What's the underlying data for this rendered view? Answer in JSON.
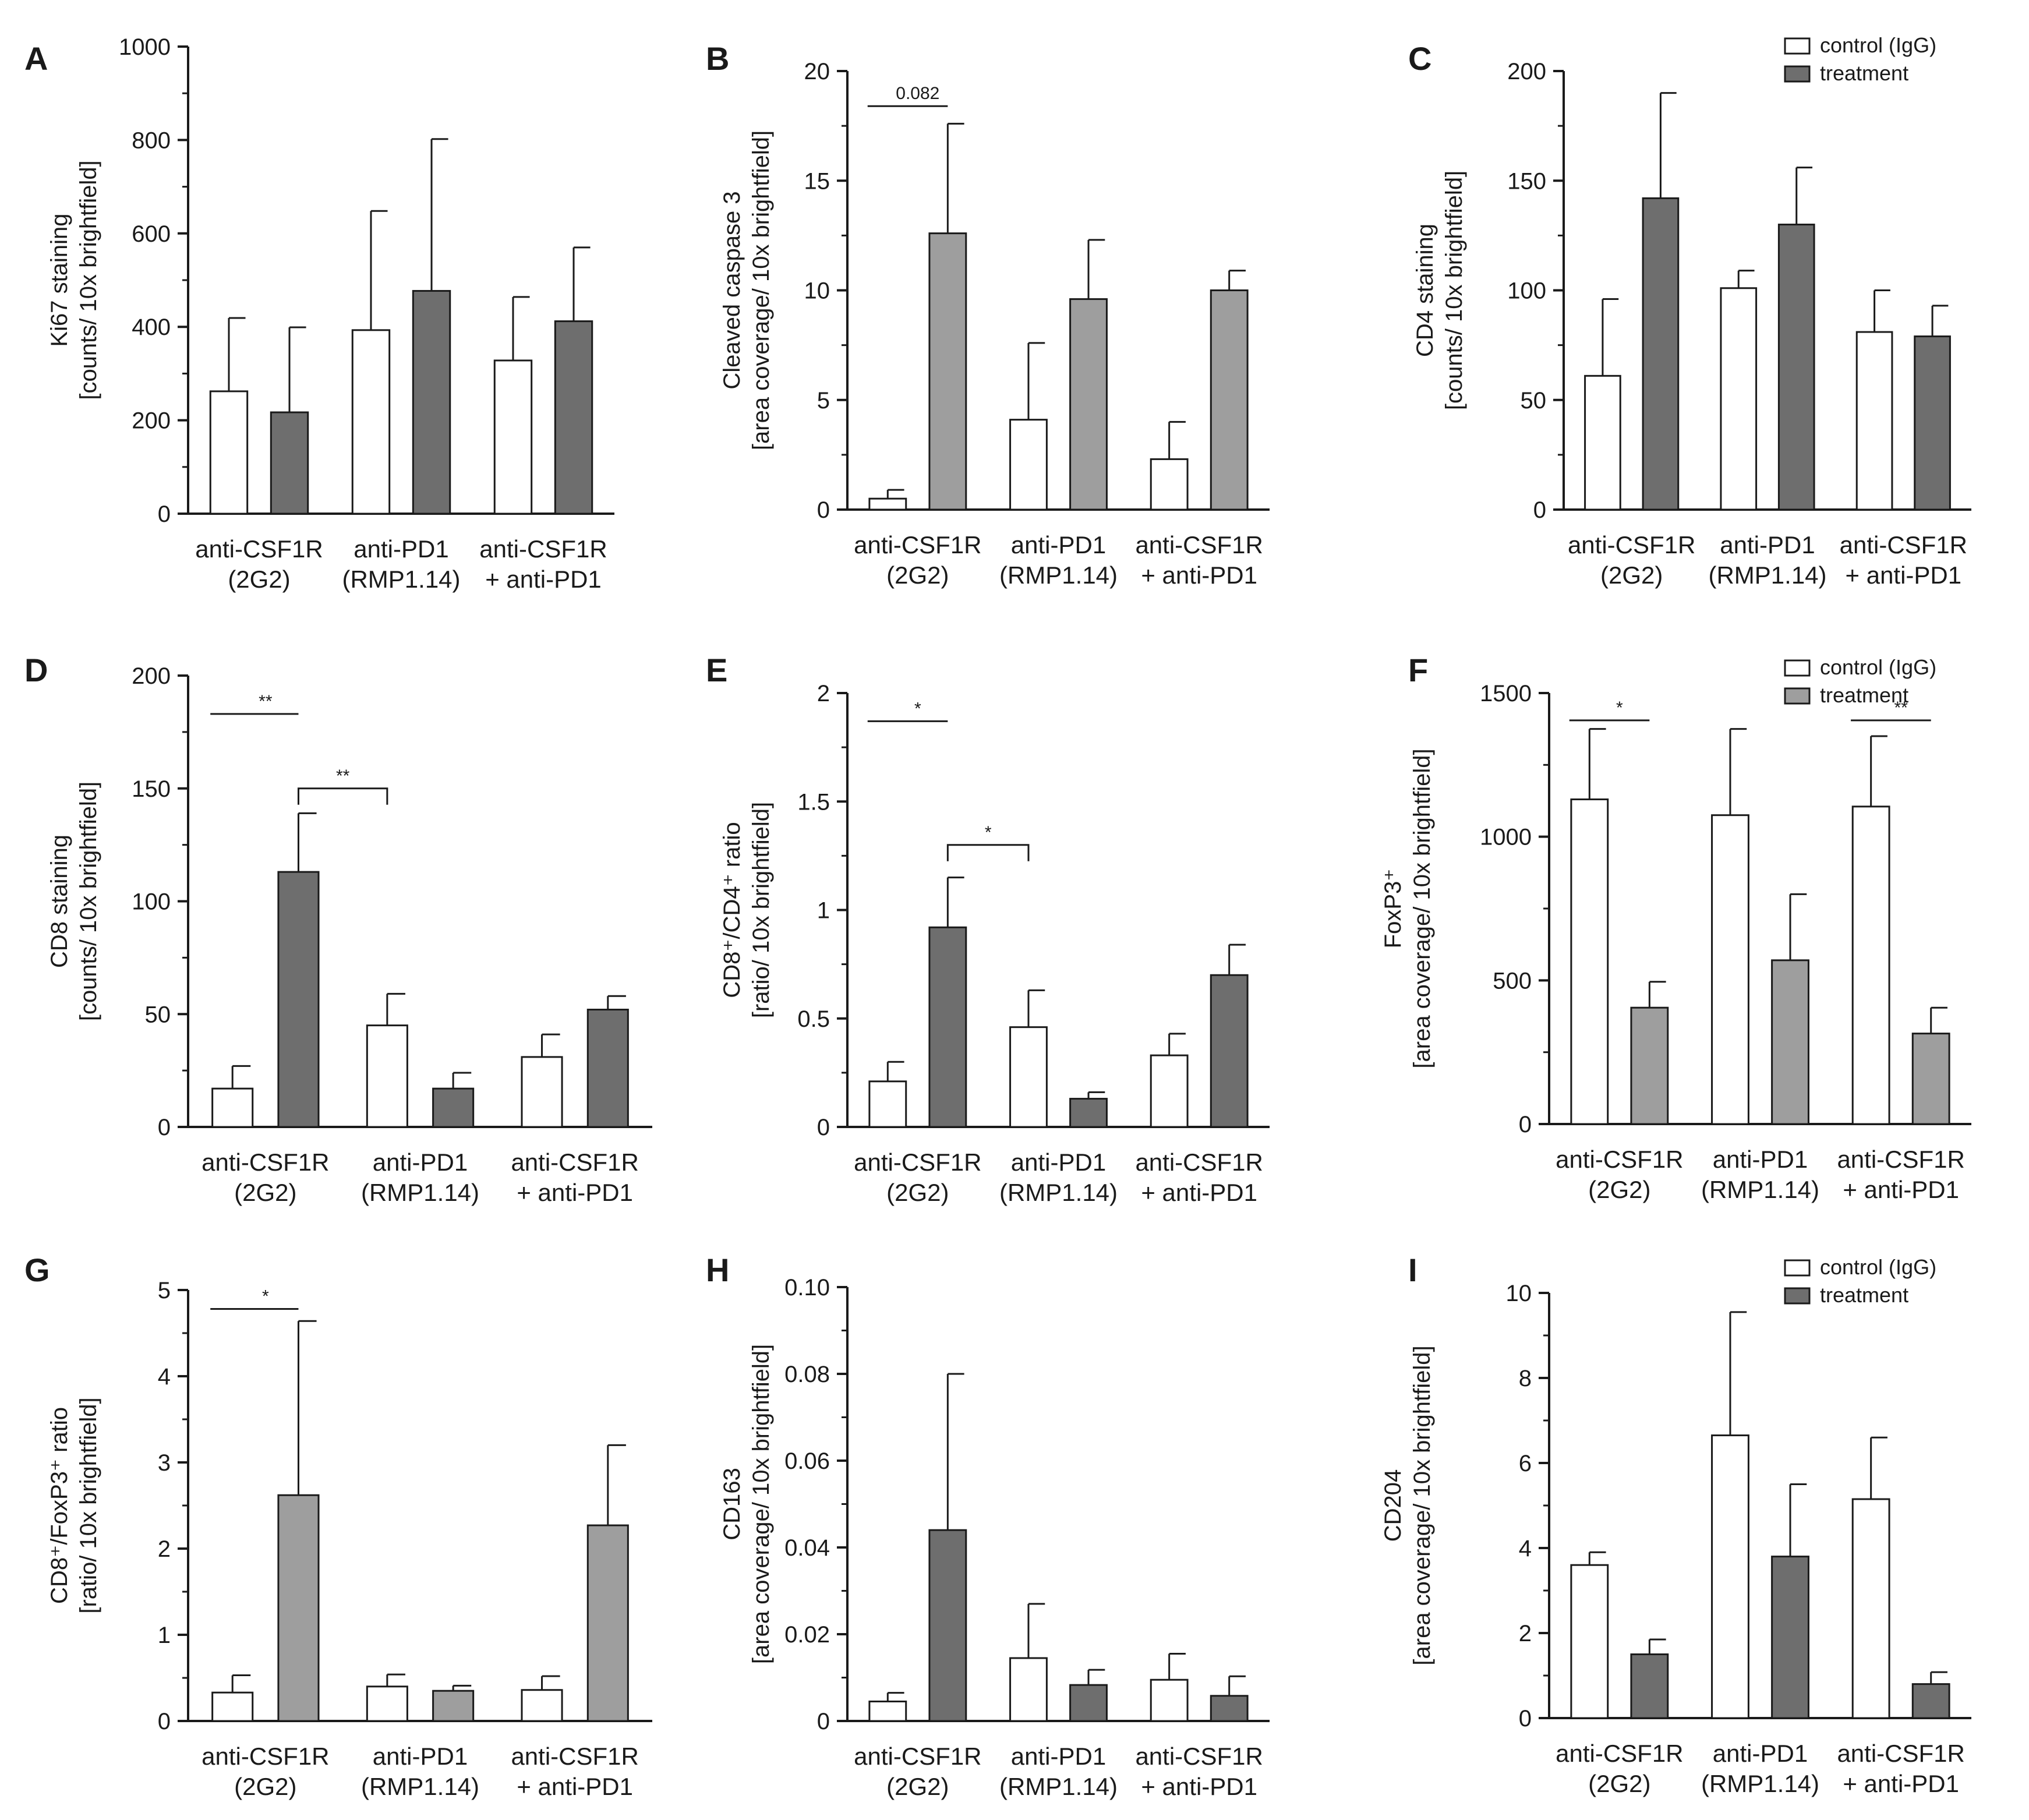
{
  "colors": {
    "control": "#ffffff",
    "treatment_dark": "#6e6e6e",
    "treatment_light": "#9e9e9e",
    "axis": "#1a1a1a"
  },
  "legend": [
    "control (IgG)",
    "treatment"
  ],
  "chart_data": [
    {
      "panel": "A",
      "type": "bar",
      "title": "",
      "ylabel": [
        "Ki67 staining",
        "[counts/ 10x brightfield]"
      ],
      "xlabel": "",
      "ylim": [
        0,
        1000
      ],
      "yticks": [
        "0",
        "200",
        "400",
        "600",
        "800",
        "1000"
      ],
      "categories": [
        [
          "anti-CSF1R",
          "(2G2)"
        ],
        [
          "anti-PD1",
          "(RMP1.14)"
        ],
        [
          "anti-CSF1R",
          "+ anti-PD1"
        ]
      ],
      "treatment_shade": "dark",
      "show_legend": false,
      "series": [
        {
          "name": "control (IgG)",
          "values": [
            262,
            393,
            328
          ],
          "errors": [
            157,
            255,
            136
          ]
        },
        {
          "name": "treatment",
          "values": [
            217,
            477,
            412
          ],
          "errors": [
            182,
            325,
            158
          ]
        }
      ],
      "significance": []
    },
    {
      "panel": "B",
      "type": "bar",
      "title": "",
      "ylabel": [
        "Cleaved caspase 3",
        "[area coverage/ 10x brightfield]"
      ],
      "xlabel": "",
      "ylim": [
        0,
        20
      ],
      "yticks": [
        "0",
        "5",
        "10",
        "15",
        "20"
      ],
      "categories": [
        [
          "anti-CSF1R",
          "(2G2)"
        ],
        [
          "anti-PD1",
          "(RMP1.14)"
        ],
        [
          "anti-CSF1R",
          "+ anti-PD1"
        ]
      ],
      "treatment_shade": "light",
      "show_legend": false,
      "series": [
        {
          "name": "control (IgG)",
          "values": [
            0.5,
            4.1,
            2.3
          ],
          "errors": [
            0.4,
            3.5,
            1.7
          ]
        },
        {
          "name": "treatment",
          "values": [
            12.6,
            9.6,
            10.0
          ],
          "errors": [
            5.0,
            2.7,
            0.9
          ]
        }
      ],
      "significance": [
        {
          "label": "0.082",
          "from": [
            0,
            0
          ],
          "to": [
            0,
            1
          ],
          "y": 18.4,
          "shape": "line"
        }
      ]
    },
    {
      "panel": "C",
      "type": "bar",
      "title": "",
      "ylabel": [
        "CD4 staining",
        "[counts/ 10x brightfield]"
      ],
      "xlabel": "",
      "ylim": [
        0,
        200
      ],
      "yticks": [
        "0",
        "50",
        "100",
        "150",
        "200"
      ],
      "categories": [
        [
          "anti-CSF1R",
          "(2G2)"
        ],
        [
          "anti-PD1",
          "(RMP1.14)"
        ],
        [
          "anti-CSF1R",
          "+ anti-PD1"
        ]
      ],
      "treatment_shade": "dark",
      "show_legend": true,
      "series": [
        {
          "name": "control (IgG)",
          "values": [
            61,
            101,
            81
          ],
          "errors": [
            35,
            8,
            19
          ]
        },
        {
          "name": "treatment",
          "values": [
            142,
            130,
            79
          ],
          "errors": [
            48,
            26,
            14
          ]
        }
      ],
      "significance": []
    },
    {
      "panel": "D",
      "type": "bar",
      "title": "",
      "ylabel": [
        "CD8 staining",
        "[counts/ 10x brightfield]"
      ],
      "xlabel": "",
      "ylim": [
        0,
        200
      ],
      "yticks": [
        "0",
        "50",
        "100",
        "150",
        "200"
      ],
      "categories": [
        [
          "anti-CSF1R",
          "(2G2)"
        ],
        [
          "anti-PD1",
          "(RMP1.14)"
        ],
        [
          "anti-CSF1R",
          "+ anti-PD1"
        ]
      ],
      "treatment_shade": "dark",
      "show_legend": false,
      "series": [
        {
          "name": "control (IgG)",
          "values": [
            17,
            45,
            31
          ],
          "errors": [
            10,
            14,
            10
          ]
        },
        {
          "name": "treatment",
          "values": [
            113,
            17,
            52
          ],
          "errors": [
            26,
            7,
            6
          ]
        }
      ],
      "significance": [
        {
          "label": "**",
          "from": [
            0,
            0
          ],
          "to": [
            0,
            1
          ],
          "y": 183,
          "shape": "line"
        },
        {
          "label": "**",
          "from": [
            0,
            1
          ],
          "to": [
            1,
            0
          ],
          "y": 150,
          "shape": "bracket"
        }
      ]
    },
    {
      "panel": "E",
      "type": "bar",
      "title": "",
      "ylabel": [
        "CD8⁺/CD4⁺ ratio",
        "[ratio/ 10x brightfield]"
      ],
      "xlabel": "",
      "ylim": [
        0,
        2
      ],
      "yticks": [
        "0",
        "0.5",
        "1",
        "1.5",
        "2"
      ],
      "categories": [
        [
          "anti-CSF1R",
          "(2G2)"
        ],
        [
          "anti-PD1",
          "(RMP1.14)"
        ],
        [
          "anti-CSF1R",
          "+ anti-PD1"
        ]
      ],
      "treatment_shade": "dark",
      "show_legend": false,
      "series": [
        {
          "name": "control (IgG)",
          "values": [
            0.21,
            0.46,
            0.33
          ],
          "errors": [
            0.09,
            0.17,
            0.1
          ]
        },
        {
          "name": "treatment",
          "values": [
            0.92,
            0.13,
            0.7
          ],
          "errors": [
            0.23,
            0.03,
            0.14
          ]
        }
      ],
      "significance": [
        {
          "label": "*",
          "from": [
            0,
            0
          ],
          "to": [
            0,
            1
          ],
          "y": 1.87,
          "shape": "line"
        },
        {
          "label": "*",
          "from": [
            0,
            1
          ],
          "to": [
            1,
            0
          ],
          "y": 1.3,
          "shape": "bracket"
        }
      ]
    },
    {
      "panel": "F",
      "type": "bar",
      "title": "",
      "ylabel": [
        "FoxP3⁺",
        "[area coverage/ 10x brightfield]"
      ],
      "xlabel": "",
      "ylim": [
        0,
        1500
      ],
      "yticks": [
        "0",
        "500",
        "1000",
        "1500"
      ],
      "categories": [
        [
          "anti-CSF1R",
          "(2G2)"
        ],
        [
          "anti-PD1",
          "(RMP1.14)"
        ],
        [
          "anti-CSF1R",
          "+ anti-PD1"
        ]
      ],
      "treatment_shade": "light",
      "show_legend": true,
      "series": [
        {
          "name": "control (IgG)",
          "values": [
            1130,
            1075,
            1105
          ],
          "errors": [
            245,
            300,
            245
          ]
        },
        {
          "name": "treatment",
          "values": [
            405,
            570,
            315
          ],
          "errors": [
            90,
            230,
            90
          ]
        }
      ],
      "significance": [
        {
          "label": "*",
          "from": [
            0,
            0
          ],
          "to": [
            0,
            1
          ],
          "y": 1405,
          "shape": "line"
        },
        {
          "label": "**",
          "from": [
            2,
            0
          ],
          "to": [
            2,
            1
          ],
          "y": 1405,
          "shape": "line"
        }
      ]
    },
    {
      "panel": "G",
      "type": "bar",
      "title": "",
      "ylabel": [
        "CD8⁺/FoxP3⁺ ratio",
        "[ratio/ 10x brightfield]"
      ],
      "xlabel": "",
      "ylim": [
        0,
        5
      ],
      "yticks": [
        "0",
        "1",
        "2",
        "3",
        "4",
        "5"
      ],
      "categories": [
        [
          "anti-CSF1R",
          "(2G2)"
        ],
        [
          "anti-PD1",
          "(RMP1.14)"
        ],
        [
          "anti-CSF1R",
          "+ anti-PD1"
        ]
      ],
      "treatment_shade": "light",
      "show_legend": false,
      "series": [
        {
          "name": "control (IgG)",
          "values": [
            0.33,
            0.4,
            0.36
          ],
          "errors": [
            0.2,
            0.14,
            0.16
          ]
        },
        {
          "name": "treatment",
          "values": [
            2.62,
            0.35,
            2.27
          ],
          "errors": [
            2.02,
            0.06,
            0.93
          ]
        }
      ],
      "significance": [
        {
          "label": "*",
          "from": [
            0,
            0
          ],
          "to": [
            0,
            1
          ],
          "y": 4.78,
          "shape": "line"
        }
      ]
    },
    {
      "panel": "H",
      "type": "bar",
      "title": "",
      "ylabel": [
        "CD163",
        "[area coverage/ 10x brightfield]"
      ],
      "xlabel": "",
      "ylim": [
        0,
        0.1
      ],
      "yticks": [
        "0",
        "0.02",
        "0.04",
        "0.06",
        "0.08",
        "0.10"
      ],
      "categories": [
        [
          "anti-CSF1R",
          "(2G2)"
        ],
        [
          "anti-PD1",
          "(RMP1.14)"
        ],
        [
          "anti-CSF1R",
          "+ anti-PD1"
        ]
      ],
      "treatment_shade": "dark",
      "show_legend": false,
      "series": [
        {
          "name": "control (IgG)",
          "values": [
            0.0045,
            0.0145,
            0.0095
          ],
          "errors": [
            0.002,
            0.0125,
            0.006
          ]
        },
        {
          "name": "treatment",
          "values": [
            0.044,
            0.0083,
            0.0058
          ],
          "errors": [
            0.036,
            0.0035,
            0.0045
          ]
        }
      ],
      "significance": []
    },
    {
      "panel": "I",
      "type": "bar",
      "title": "",
      "ylabel": [
        "CD204",
        "[area coverage/ 10x brightfield]"
      ],
      "xlabel": "",
      "ylim": [
        0,
        10
      ],
      "yticks": [
        "0",
        "2",
        "4",
        "6",
        "8",
        "10"
      ],
      "categories": [
        [
          "anti-CSF1R",
          "(2G2)"
        ],
        [
          "anti-PD1",
          "(RMP1.14)"
        ],
        [
          "anti-CSF1R",
          "+ anti-PD1"
        ]
      ],
      "treatment_shade": "dark",
      "show_legend": true,
      "series": [
        {
          "name": "control (IgG)",
          "values": [
            3.6,
            6.65,
            5.15
          ],
          "errors": [
            0.3,
            2.9,
            1.45
          ]
        },
        {
          "name": "treatment",
          "values": [
            1.5,
            3.8,
            0.8
          ],
          "errors": [
            0.35,
            1.7,
            0.28
          ]
        }
      ],
      "significance": []
    }
  ]
}
